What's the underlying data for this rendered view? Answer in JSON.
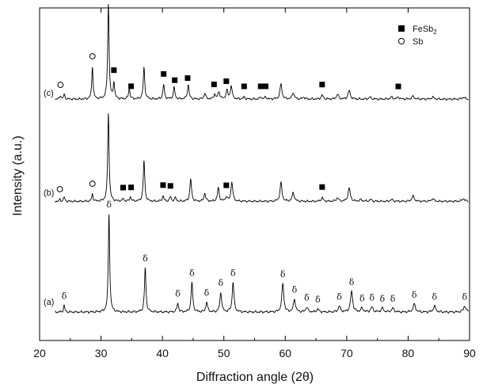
{
  "chart_data": {
    "type": "line",
    "xlabel": "Diffraction angle (2θ)",
    "ylabel": "Intensity (a.u.)",
    "xlim": [
      20,
      90
    ],
    "xticks": [
      20,
      30,
      40,
      50,
      60,
      70,
      80,
      90
    ],
    "legend": {
      "placement": "top-right",
      "entries": [
        {
          "marker": "filled-square",
          "label_main": "FeSb",
          "label_sub": "2"
        },
        {
          "marker": "open-circle",
          "label_main": "Sb",
          "label_sub": ""
        }
      ]
    },
    "series": [
      {
        "name": "(a)",
        "peaks": [
          {
            "x": 24.0,
            "h": 0.07
          },
          {
            "x": 31.3,
            "h": 1.0
          },
          {
            "x": 37.2,
            "h": 0.45
          },
          {
            "x": 42.5,
            "h": 0.09
          },
          {
            "x": 44.8,
            "h": 0.3
          },
          {
            "x": 47.2,
            "h": 0.1
          },
          {
            "x": 49.5,
            "h": 0.2
          },
          {
            "x": 51.5,
            "h": 0.3
          },
          {
            "x": 59.6,
            "h": 0.29
          },
          {
            "x": 61.5,
            "h": 0.13
          },
          {
            "x": 63.5,
            "h": 0.05
          },
          {
            "x": 65.3,
            "h": 0.03
          },
          {
            "x": 68.8,
            "h": 0.06
          },
          {
            "x": 70.8,
            "h": 0.21
          },
          {
            "x": 72.5,
            "h": 0.04
          },
          {
            "x": 74.1,
            "h": 0.05
          },
          {
            "x": 75.8,
            "h": 0.04
          },
          {
            "x": 77.5,
            "h": 0.04
          },
          {
            "x": 81.0,
            "h": 0.08
          },
          {
            "x": 84.3,
            "h": 0.06
          },
          {
            "x": 89.2,
            "h": 0.06
          }
        ],
        "markers": [
          {
            "x": 24.0,
            "symbol": "δ"
          },
          {
            "x": 31.3,
            "symbol": "δ"
          },
          {
            "x": 37.2,
            "symbol": "δ"
          },
          {
            "x": 42.5,
            "symbol": "δ"
          },
          {
            "x": 44.8,
            "symbol": "δ"
          },
          {
            "x": 47.2,
            "symbol": "δ"
          },
          {
            "x": 49.5,
            "symbol": "δ"
          },
          {
            "x": 51.5,
            "symbol": "δ"
          },
          {
            "x": 59.6,
            "symbol": "δ"
          },
          {
            "x": 61.5,
            "symbol": "δ"
          },
          {
            "x": 63.5,
            "symbol": "δ"
          },
          {
            "x": 65.3,
            "symbol": "δ"
          },
          {
            "x": 68.8,
            "symbol": "δ"
          },
          {
            "x": 70.8,
            "symbol": "δ"
          },
          {
            "x": 72.5,
            "symbol": "δ"
          },
          {
            "x": 74.1,
            "symbol": "δ"
          },
          {
            "x": 75.8,
            "symbol": "δ"
          },
          {
            "x": 77.5,
            "symbol": "δ"
          },
          {
            "x": 81.0,
            "symbol": "δ"
          },
          {
            "x": 84.3,
            "symbol": "δ"
          },
          {
            "x": 89.2,
            "symbol": "δ"
          }
        ]
      },
      {
        "name": "(b)",
        "peaks": [
          {
            "x": 23.3,
            "h": 0.02
          },
          {
            "x": 24.0,
            "h": 0.05
          },
          {
            "x": 28.6,
            "h": 0.08
          },
          {
            "x": 31.2,
            "h": 1.0
          },
          {
            "x": 33.6,
            "h": 0.03
          },
          {
            "x": 34.8,
            "h": 0.05
          },
          {
            "x": 37.0,
            "h": 0.46
          },
          {
            "x": 40.1,
            "h": 0.06
          },
          {
            "x": 41.3,
            "h": 0.05
          },
          {
            "x": 42.1,
            "h": 0.04
          },
          {
            "x": 44.6,
            "h": 0.25
          },
          {
            "x": 46.9,
            "h": 0.09
          },
          {
            "x": 49.1,
            "h": 0.15
          },
          {
            "x": 50.4,
            "h": 0.05
          },
          {
            "x": 51.3,
            "h": 0.22
          },
          {
            "x": 59.3,
            "h": 0.21
          },
          {
            "x": 61.3,
            "h": 0.1
          },
          {
            "x": 66.0,
            "h": 0.04
          },
          {
            "x": 68.5,
            "h": 0.04
          },
          {
            "x": 70.4,
            "h": 0.15
          },
          {
            "x": 72.3,
            "h": 0.02
          },
          {
            "x": 73.9,
            "h": 0.02
          },
          {
            "x": 77.3,
            "h": 0.02
          },
          {
            "x": 80.8,
            "h": 0.06
          },
          {
            "x": 84.0,
            "h": 0.03
          },
          {
            "x": 89.0,
            "h": 0.03
          }
        ],
        "markers": [
          {
            "x": 23.3,
            "symbol": "Sb"
          },
          {
            "x": 28.6,
            "symbol": "Sb"
          },
          {
            "x": 33.6,
            "symbol": "FeSb2"
          },
          {
            "x": 34.9,
            "symbol": "FeSb2"
          },
          {
            "x": 40.1,
            "symbol": "FeSb2"
          },
          {
            "x": 41.3,
            "symbol": "FeSb2"
          },
          {
            "x": 50.4,
            "symbol": "FeSb2"
          },
          {
            "x": 66.0,
            "symbol": "FeSb2"
          }
        ]
      },
      {
        "name": "(c)",
        "peaks": [
          {
            "x": 23.4,
            "h": 0.04
          },
          {
            "x": 24.0,
            "h": 0.05
          },
          {
            "x": 28.6,
            "h": 0.34
          },
          {
            "x": 31.2,
            "h": 1.0
          },
          {
            "x": 32.1,
            "h": 0.17
          },
          {
            "x": 34.6,
            "h": 0.11
          },
          {
            "x": 37.0,
            "h": 0.33
          },
          {
            "x": 40.2,
            "h": 0.15
          },
          {
            "x": 41.9,
            "h": 0.12
          },
          {
            "x": 44.2,
            "h": 0.15
          },
          {
            "x": 46.9,
            "h": 0.06
          },
          {
            "x": 48.5,
            "h": 0.05
          },
          {
            "x": 49.2,
            "h": 0.08
          },
          {
            "x": 50.5,
            "h": 0.09
          },
          {
            "x": 51.2,
            "h": 0.14
          },
          {
            "x": 53.3,
            "h": 0.02
          },
          {
            "x": 56.0,
            "h": 0.02
          },
          {
            "x": 56.8,
            "h": 0.02
          },
          {
            "x": 59.3,
            "h": 0.16
          },
          {
            "x": 61.3,
            "h": 0.07
          },
          {
            "x": 63.0,
            "h": 0.02
          },
          {
            "x": 66.0,
            "h": 0.04
          },
          {
            "x": 68.5,
            "h": 0.05
          },
          {
            "x": 70.4,
            "h": 0.09
          },
          {
            "x": 73.8,
            "h": 0.02
          },
          {
            "x": 77.3,
            "h": 0.02
          },
          {
            "x": 78.4,
            "h": 0.02
          },
          {
            "x": 80.8,
            "h": 0.03
          },
          {
            "x": 84.0,
            "h": 0.02
          },
          {
            "x": 89.0,
            "h": 0.02
          }
        ],
        "markers": [
          {
            "x": 23.4,
            "symbol": "Sb"
          },
          {
            "x": 28.6,
            "symbol": "Sb"
          },
          {
            "x": 32.1,
            "symbol": "FeSb2"
          },
          {
            "x": 34.9,
            "symbol": "FeSb2"
          },
          {
            "x": 40.2,
            "symbol": "FeSb2"
          },
          {
            "x": 42.0,
            "symbol": "FeSb2"
          },
          {
            "x": 44.1,
            "symbol": "FeSb2"
          },
          {
            "x": 48.4,
            "symbol": "FeSb2"
          },
          {
            "x": 50.4,
            "symbol": "FeSb2"
          },
          {
            "x": 53.3,
            "symbol": "FeSb2"
          },
          {
            "x": 56.0,
            "symbol": "FeSb2"
          },
          {
            "x": 56.8,
            "symbol": "FeSb2"
          },
          {
            "x": 66.0,
            "symbol": "FeSb2"
          },
          {
            "x": 78.4,
            "symbol": "FeSb2"
          }
        ]
      }
    ]
  }
}
